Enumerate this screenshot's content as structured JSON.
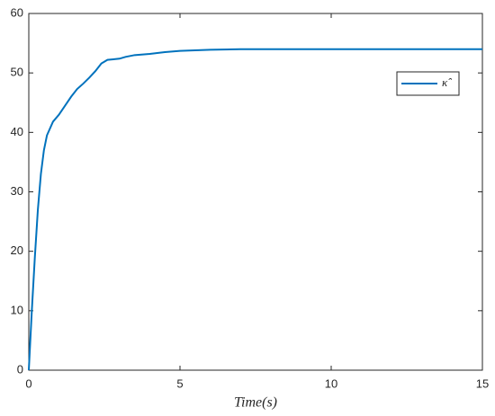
{
  "chart_data": {
    "type": "line",
    "x_label": "Time(s)",
    "x": [
      0,
      0.1,
      0.2,
      0.3,
      0.4,
      0.5,
      0.6,
      0.8,
      1,
      1.2,
      1.4,
      1.6,
      1.8,
      2,
      2.2,
      2.4,
      2.6,
      2.8,
      3,
      3.2,
      3.5,
      4,
      4.5,
      5,
      6,
      7,
      8,
      10,
      12,
      15
    ],
    "series": [
      {
        "name": "κ̂",
        "color": "#0072bd",
        "values": [
          0,
          10,
          19,
          27,
          33,
          37,
          39.5,
          41.8,
          43,
          44.5,
          46,
          47.3,
          48.2,
          49.2,
          50.3,
          51.6,
          52.2,
          52.3,
          52.4,
          52.7,
          53,
          53.2,
          53.5,
          53.7,
          53.9,
          54,
          54,
          54,
          54,
          54
        ]
      }
    ],
    "xlim": [
      0,
      15
    ],
    "xticks": [
      0,
      5,
      10,
      15
    ],
    "ylim": [
      0,
      60
    ],
    "yticks": [
      0,
      10,
      20,
      30,
      40,
      50,
      60
    ],
    "grid": false,
    "legend": "upper right"
  }
}
